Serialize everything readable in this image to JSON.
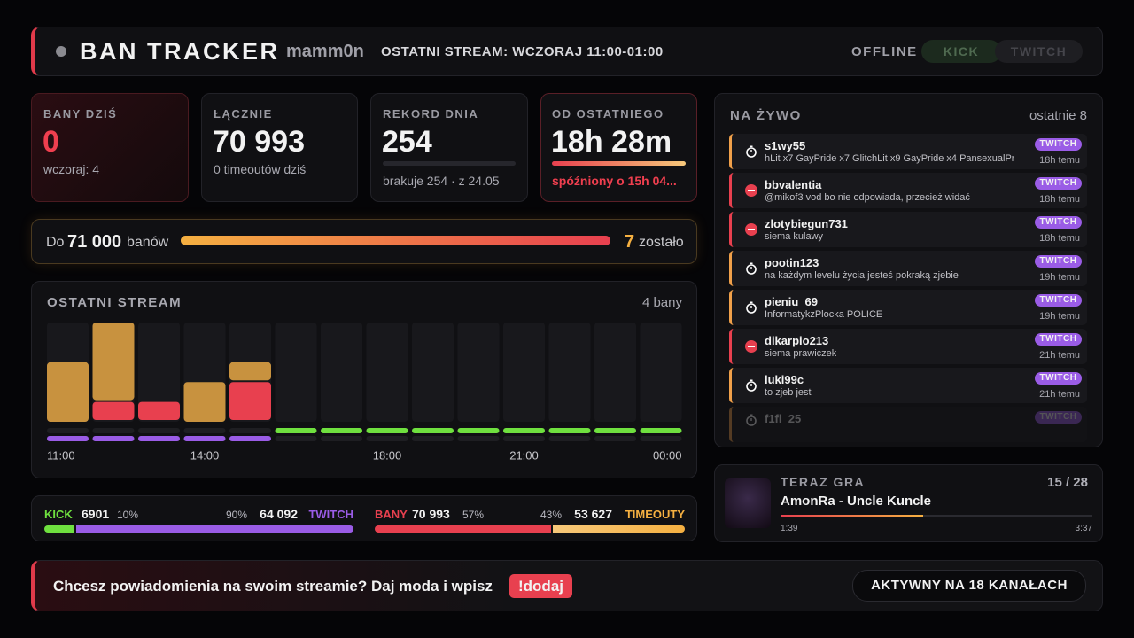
{
  "header": {
    "title": "BAN TRACKER",
    "channel": "mamm0n",
    "last_stream": "OSTATNI STREAM: WCZORAJ 11:00-01:00",
    "status": "OFFLINE",
    "platforms": [
      "KICK",
      "TWITCH"
    ]
  },
  "stats": [
    {
      "label": "BANY DZIŚ",
      "value": "0",
      "sub": "wczoraj: 4"
    },
    {
      "label": "ŁĄCZNIE",
      "value": "70 993",
      "sub": "0 timeoutów dziś"
    },
    {
      "label": "REKORD DNIA",
      "value": "254",
      "sub": "brakuje 254 · z 24.05"
    },
    {
      "label": "OD OSTATNIEGO",
      "value": "18h 28m",
      "sub": "spóźniony o 15h 04..."
    }
  ],
  "goal": {
    "prefix": "Do",
    "target": {
      "value": 71000,
      "label": "71 000"
    },
    "suffix": "banów",
    "remaining": 7,
    "remaining_label": "zostało"
  },
  "stream_chart": {
    "title": "OSTATNI STREAM",
    "total": "4 bany",
    "categories": [
      "11:00",
      null,
      null,
      "14:00",
      null,
      null,
      null,
      "18:00",
      null,
      null,
      "21:00",
      null,
      null,
      "00:00"
    ],
    "timeouts": [
      3,
      4,
      0,
      2,
      1,
      0,
      0,
      0,
      0,
      0,
      0,
      0,
      0,
      0
    ],
    "bans": [
      0,
      1,
      1,
      0,
      2,
      0,
      0,
      0,
      0,
      0,
      0,
      0,
      0,
      0
    ],
    "timeout_color": "#c8923f",
    "ban_color": "#e8404f",
    "kick_live": [
      false,
      false,
      false,
      false,
      false,
      true,
      true,
      true,
      true,
      true,
      true,
      true,
      true,
      true
    ],
    "twitch_live": [
      true,
      true,
      true,
      true,
      true,
      false,
      false,
      false,
      false,
      false,
      false,
      false,
      false,
      false
    ],
    "kick_color": "#6fe03f",
    "twitch_color": "#9a5ce6"
  },
  "split": [
    {
      "left": {
        "label": "KICK",
        "value": "6901",
        "share": {
          "value": 10,
          "label": "10%"
        },
        "color": "#6fe03f"
      },
      "right": {
        "label": "TWITCH",
        "value": "64 092",
        "share": {
          "value": 90,
          "label": "90%"
        },
        "color": "#9a5ce6"
      }
    },
    {
      "left": {
        "label": "BANY",
        "value": "70 993",
        "share": {
          "value": 57,
          "label": "57%"
        },
        "color": "#e8404f"
      },
      "right": {
        "label": "TIMEOUTY",
        "value": "53 627",
        "share": {
          "value": 43,
          "label": "43%"
        },
        "color": "#f5b041"
      }
    }
  ],
  "live": {
    "title": "NA ŻYWO",
    "count": "ostatnie 8",
    "entries": [
      {
        "name": "s1wy55",
        "message": "hLit x7 GayPride x7 GlitchLit x9 GayPride x4 PansexualPr",
        "platform": "TWITCH",
        "time": "18h temu",
        "kind": "timeout"
      },
      {
        "name": "bbvalentia",
        "message": "@mikof3 vod bo nie odpowiada, przecież widać",
        "platform": "TWITCH",
        "time": "18h temu",
        "kind": "ban"
      },
      {
        "name": "zlotybiegun731",
        "message": "siema kulawy",
        "platform": "TWITCH",
        "time": "18h temu",
        "kind": "ban"
      },
      {
        "name": "pootin123",
        "message": "na każdym levelu życia jesteś pokraką zjebie",
        "platform": "TWITCH",
        "time": "19h temu",
        "kind": "timeout"
      },
      {
        "name": "pieniu_69",
        "message": "InformatykzPlocka POLICE",
        "platform": "TWITCH",
        "time": "19h temu",
        "kind": "timeout"
      },
      {
        "name": "dikarpio213",
        "message": "siema prawiczek",
        "platform": "TWITCH",
        "time": "21h temu",
        "kind": "ban"
      },
      {
        "name": "luki99c",
        "message": "to zjeb jest",
        "platform": "TWITCH",
        "time": "21h temu",
        "kind": "timeout"
      },
      {
        "name": "f1fl_25",
        "platform": "TWITCH",
        "kind": "timeout"
      }
    ]
  },
  "now_playing": {
    "label": "TERAZ GRA",
    "position": "15 / 28",
    "track": "AmonRa - Uncle Kuncle",
    "elapsed": "1:39",
    "duration": "3:37"
  },
  "footer": {
    "message": "Chcesz powiadomienia na swoim streamie? Daj moda i wpisz",
    "command": "!dodaj",
    "channels": "AKTYWNY NA 18 KANAŁACH"
  }
}
